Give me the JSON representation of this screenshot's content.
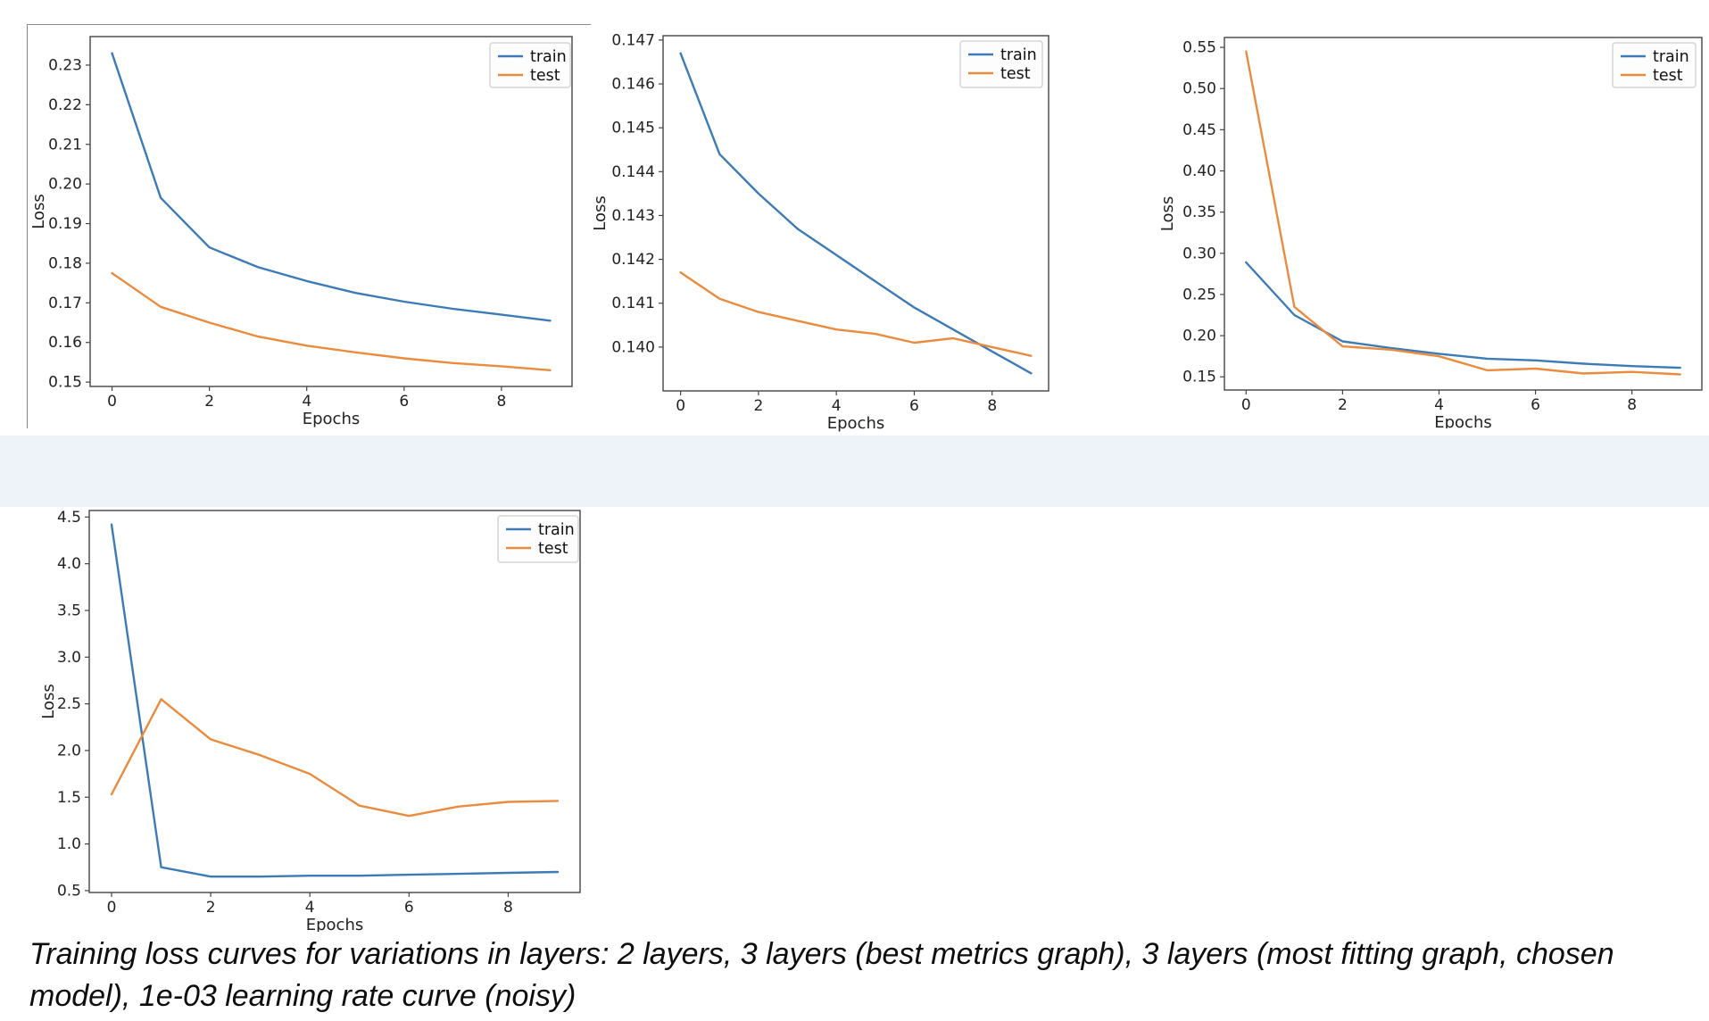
{
  "caption": "Training loss curves for variations in layers: 2 layers, 3 layers (best metrics graph), 3 layers (most fitting graph, chosen model), 1e-03 learning rate curve (noisy)",
  "colors": {
    "train": "#3d7bb6",
    "test": "#ea8b3e",
    "spine": "#444444",
    "tick_text": "#222222"
  },
  "chart_data": [
    {
      "type": "line",
      "name": "2-layers",
      "xlabel": "Epochs",
      "ylabel": "Loss",
      "legend": [
        "train",
        "test"
      ],
      "legend_position": "upper right",
      "grid": false,
      "x": [
        0,
        1,
        2,
        3,
        4,
        5,
        6,
        7,
        8,
        9
      ],
      "xlim": [
        -0.45,
        9.45
      ],
      "xticks": [
        0,
        2,
        4,
        6,
        8
      ],
      "ylim": [
        0.1489,
        0.2372
      ],
      "ytick_values": [
        0.15,
        0.16,
        0.17,
        0.18,
        0.19,
        0.2,
        0.21,
        0.22,
        0.23
      ],
      "ytick_labels": [
        "0.15",
        "0.16",
        "0.17",
        "0.18",
        "0.19",
        "0.20",
        "0.21",
        "0.22",
        "0.23"
      ],
      "series": [
        {
          "name": "train",
          "color": "#3d7bb6",
          "values": [
            0.233,
            0.1965,
            0.184,
            0.179,
            0.1755,
            0.1725,
            0.1703,
            0.1685,
            0.167,
            0.1655
          ]
        },
        {
          "name": "test",
          "color": "#ea8b3e",
          "values": [
            0.1775,
            0.169,
            0.165,
            0.1615,
            0.1592,
            0.1575,
            0.156,
            0.1548,
            0.154,
            0.153
          ]
        }
      ]
    },
    {
      "type": "line",
      "name": "3-layers-best-metrics",
      "xlabel": "Epochs",
      "ylabel": "Loss",
      "legend": [
        "train",
        "test"
      ],
      "legend_position": "upper right",
      "grid": false,
      "x": [
        0,
        1,
        2,
        3,
        4,
        5,
        6,
        7,
        8,
        9
      ],
      "xlim": [
        -0.45,
        9.45
      ],
      "xticks": [
        0,
        2,
        4,
        6,
        8
      ],
      "ylim": [
        0.139,
        0.1471
      ],
      "ytick_values": [
        0.14,
        0.141,
        0.142,
        0.143,
        0.144,
        0.145,
        0.146,
        0.147
      ],
      "ytick_labels": [
        "0.140",
        "0.141",
        "0.142",
        "0.143",
        "0.144",
        "0.145",
        "0.146",
        "0.147"
      ],
      "series": [
        {
          "name": "train",
          "color": "#3d7bb6",
          "values": [
            0.1467,
            0.1444,
            0.1435,
            0.1427,
            0.1421,
            0.1415,
            0.1409,
            0.1404,
            0.1399,
            0.1394
          ]
        },
        {
          "name": "test",
          "color": "#ea8b3e",
          "values": [
            0.1417,
            0.1411,
            0.1408,
            0.1406,
            0.1404,
            0.1403,
            0.1401,
            0.1402,
            0.14,
            0.1398
          ]
        }
      ]
    },
    {
      "type": "line",
      "name": "3-layers-most-fitting",
      "xlabel": "Epochs",
      "ylabel": "Loss",
      "legend": [
        "train",
        "test"
      ],
      "legend_position": "upper right",
      "grid": false,
      "x": [
        0,
        1,
        2,
        3,
        4,
        5,
        6,
        7,
        8,
        9
      ],
      "xlim": [
        -0.45,
        9.45
      ],
      "xticks": [
        0,
        2,
        4,
        6,
        8
      ],
      "ylim": [
        0.134,
        0.562
      ],
      "ytick_values": [
        0.15,
        0.2,
        0.25,
        0.3,
        0.35,
        0.4,
        0.45,
        0.5,
        0.55
      ],
      "ytick_labels": [
        "0.15",
        "0.20",
        "0.25",
        "0.30",
        "0.35",
        "0.40",
        "0.45",
        "0.50",
        "0.55"
      ],
      "series": [
        {
          "name": "train",
          "color": "#3d7bb6",
          "values": [
            0.289,
            0.225,
            0.193,
            0.185,
            0.178,
            0.172,
            0.17,
            0.166,
            0.163,
            0.161
          ]
        },
        {
          "name": "test",
          "color": "#ea8b3e",
          "values": [
            0.545,
            0.235,
            0.187,
            0.183,
            0.175,
            0.158,
            0.16,
            0.154,
            0.156,
            0.153
          ]
        }
      ]
    },
    {
      "type": "line",
      "name": "1e-03-learning-rate",
      "xlabel": "Epochs",
      "ylabel": "Loss",
      "legend": [
        "train",
        "test"
      ],
      "legend_position": "upper right",
      "grid": false,
      "x": [
        0,
        1,
        2,
        3,
        4,
        5,
        6,
        7,
        8,
        9
      ],
      "xlim": [
        -0.45,
        9.45
      ],
      "xticks": [
        0,
        2,
        4,
        6,
        8
      ],
      "ylim": [
        0.48,
        4.57
      ],
      "ytick_values": [
        0.5,
        1.0,
        1.5,
        2.0,
        2.5,
        3.0,
        3.5,
        4.0,
        4.5
      ],
      "ytick_labels": [
        "0.5",
        "1.0",
        "1.5",
        "2.0",
        "2.5",
        "3.0",
        "3.5",
        "4.0",
        "4.5"
      ],
      "series": [
        {
          "name": "train",
          "color": "#3d7bb6",
          "values": [
            4.42,
            0.75,
            0.65,
            0.65,
            0.66,
            0.66,
            0.67,
            0.68,
            0.69,
            0.7
          ]
        },
        {
          "name": "test",
          "color": "#ea8b3e",
          "values": [
            1.53,
            2.55,
            2.12,
            1.95,
            1.75,
            1.41,
            1.3,
            1.4,
            1.45,
            1.46
          ]
        }
      ]
    }
  ]
}
